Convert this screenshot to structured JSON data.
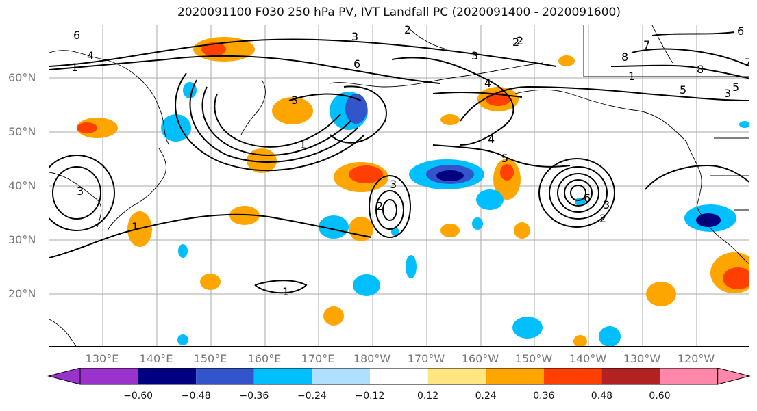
{
  "title": "2020091100 F030 250 hPa PV, IVT Landfall PC (2020091400 - 2020091600)",
  "lat_labels": [
    "60°N",
    "50°N",
    "40°N",
    "30°N",
    "20°N"
  ],
  "lon_labels": [
    "130°E",
    "140°E",
    "150°E",
    "160°E",
    "170°E",
    "180°W",
    "170°W",
    "160°W",
    "150°W",
    "140°W",
    "130°W",
    "120°W"
  ],
  "colorbar": {
    "ticks": [
      "−0.60",
      "−0.48",
      "−0.36",
      "−0.24",
      "−0.12",
      "0.12",
      "0.24",
      "0.36",
      "0.48",
      "0.60"
    ],
    "colors": [
      "#9933cc",
      "#000080",
      "#3355cc",
      "#00bfff",
      "#b0e0ff",
      "#ffffff",
      "#ffe680",
      "#ffa500",
      "#ff4000",
      "#b22222",
      "#ff88aa"
    ]
  },
  "contour_labels": [
    "6",
    "1",
    "4",
    "3",
    "2",
    "6",
    "2",
    "8",
    "7",
    "6",
    "8",
    "5",
    "3",
    "1",
    "3",
    "2",
    "6",
    "3",
    "2",
    "3",
    "1",
    "4",
    "3",
    "2",
    "1",
    "3",
    "5",
    "4",
    "7",
    "5",
    "1"
  ]
}
